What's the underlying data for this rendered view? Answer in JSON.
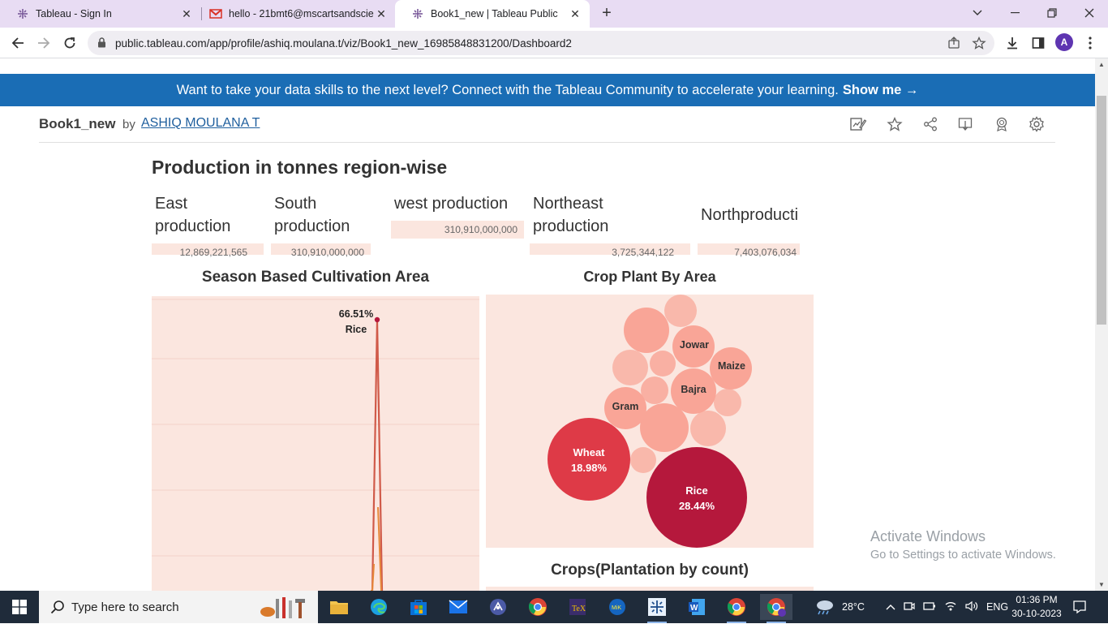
{
  "browser": {
    "tabs": [
      {
        "title": "Tableau - Sign In",
        "icon": "tableau-icon"
      },
      {
        "title": "hello - 21bmt6@mscartsandscie",
        "icon": "gmail-icon"
      },
      {
        "title": "Book1_new | Tableau Public",
        "icon": "tableau-icon"
      }
    ],
    "url": "public.tableau.com/app/profile/ashiq.moulana.t/viz/Book1_new_16985848831200/Dashboard2",
    "avatar_letter": "A"
  },
  "banner": {
    "text": "Want to take your data skills to the next level? Connect with the Tableau Community to accelerate your learning.",
    "link": "Show me →"
  },
  "viz": {
    "name": "Book1_new",
    "by": "by",
    "author": "ASHIQ MOULANA T"
  },
  "dashboard": {
    "title": "Production in tonnes region-wise",
    "kpis": [
      {
        "label_lines": [
          "East",
          "production"
        ],
        "value": "12,869,221,565"
      },
      {
        "label_lines": [
          "South",
          "production"
        ],
        "value": "310,910,000,000"
      },
      {
        "label_lines": [
          "west production"
        ],
        "value": "310,910,000,000"
      },
      {
        "label_lines": [
          "Northeast",
          "production"
        ],
        "value": "3,725,344,122"
      },
      {
        "label_lines": [
          "Northproducti"
        ],
        "value": "7,403,076,034"
      }
    ],
    "season_chart": {
      "title": "Season Based Cultivation Area",
      "peak_label": "66.51%",
      "peak_category": "Rice"
    },
    "crop_chart": {
      "title": "Crop Plant By Area",
      "bubbles": [
        {
          "crop": "Rice",
          "pct": "28.44%"
        },
        {
          "crop": "Wheat",
          "pct": "18.98%"
        },
        {
          "crop": "Gram",
          "pct": ""
        },
        {
          "crop": "Bajra",
          "pct": ""
        },
        {
          "crop": "Jowar",
          "pct": ""
        },
        {
          "crop": "Maize",
          "pct": ""
        }
      ]
    },
    "count_chart": {
      "title": "Crops(Plantation by count)"
    }
  },
  "watermark": {
    "line1": "Activate Windows",
    "line2": "Go to Settings to activate Windows."
  },
  "taskbar": {
    "search_placeholder": "Type here to search",
    "weather": "28°C",
    "lang": "ENG",
    "time": "01:36 PM",
    "date": "30-10-2023"
  },
  "colors": {
    "banner": "#1a6db5",
    "panel": "#fbe6df",
    "rice": "#b5183c",
    "wheat": "#de3a47",
    "minor": "#f9a89a"
  }
}
